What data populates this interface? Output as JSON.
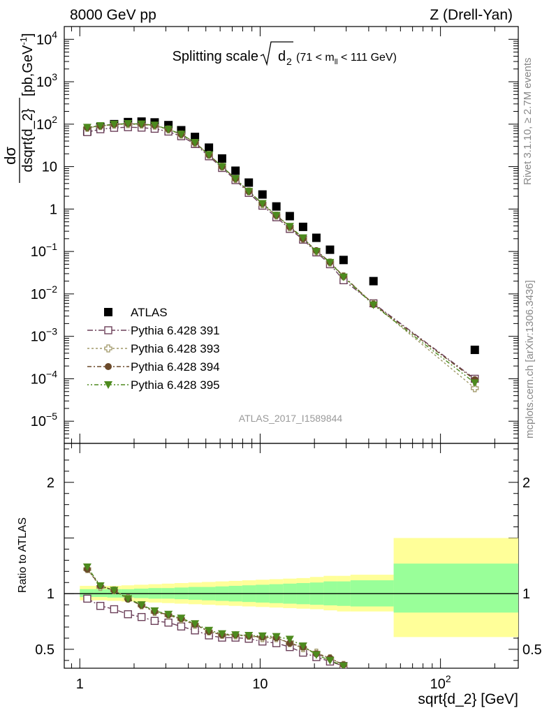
{
  "header": {
    "left": "8000 GeV pp",
    "right": "Z (Drell-Yan)"
  },
  "side_labels": {
    "rivet": "Rivet 3.1.10, ≥ 2.7M events",
    "mcplots": "mcplots.cern.ch [arXiv:1306.3436]"
  },
  "chart_data": [
    {
      "type": "scatter",
      "title": "Splitting scale",
      "title_symbol": "d",
      "title_subscript": "2",
      "title_range": "(71 < m",
      "title_range_sub": "ll",
      "title_range_end": " < 111 GeV)",
      "analysis_label": "ATLAS_2017_I1589844",
      "xlabel": "sqrt{d_2} [GeV]",
      "ylabel_top": "dσ",
      "ylabel_bottom": "dsqrt{d_2}",
      "ylabel_unit": "[pb,GeV",
      "ylabel_unit_sup": "-1",
      "ylabel_unit_end": "]",
      "xscale": "log",
      "yscale": "log",
      "xlim": [
        0.82,
        270
      ],
      "ylim": [
        3e-06,
        20000
      ],
      "legend_position": "bottom-left",
      "x_ticks": [
        {
          "v": 1,
          "label": "1"
        },
        {
          "v": 10,
          "label": "10"
        },
        {
          "v": 100,
          "label": "10",
          "sup": "2"
        }
      ],
      "y_ticks": [
        {
          "v": 1e-05,
          "label": "10",
          "sup": "−5"
        },
        {
          "v": 0.0001,
          "label": "10",
          "sup": "−4"
        },
        {
          "v": 0.001,
          "label": "10",
          "sup": "−3"
        },
        {
          "v": 0.01,
          "label": "10",
          "sup": "−2"
        },
        {
          "v": 0.1,
          "label": "10",
          "sup": "−1"
        },
        {
          "v": 1,
          "label": "1",
          "sup": ""
        },
        {
          "v": 10,
          "label": "10",
          "sup": ""
        },
        {
          "v": 100,
          "label": "10",
          "sup": "2"
        },
        {
          "v": 1000,
          "label": "10",
          "sup": "3"
        },
        {
          "v": 10000,
          "label": "10",
          "sup": "4"
        }
      ],
      "x": [
        1.1,
        1.3,
        1.55,
        1.85,
        2.2,
        2.6,
        3.1,
        3.65,
        4.35,
        5.2,
        6.15,
        7.3,
        8.65,
        10.3,
        12.3,
        14.6,
        17.3,
        20.5,
        24.4,
        29.0,
        42.5,
        155.0
      ],
      "series": [
        {
          "name": "ATLAS",
          "marker": "square-filled",
          "color": "#000000",
          "values": [
            68,
            85,
            100,
            112,
            115,
            110,
            95,
            72,
            50,
            28,
            15.5,
            8,
            4.2,
            2.2,
            1.15,
            0.68,
            0.38,
            0.21,
            0.11,
            0.063,
            0.02,
            0.00048
          ]
        },
        {
          "name": "Pythia 6.428 391",
          "marker": "square-open",
          "color": "#6b3f59",
          "values": [
            65,
            76,
            82,
            85,
            83,
            78,
            67,
            52,
            34,
            17.5,
            9.3,
            4.8,
            2.4,
            1.2,
            0.64,
            0.34,
            0.19,
            0.095,
            0.05,
            0.021,
            0.006,
            0.0001
          ]
        },
        {
          "name": "Pythia 6.428 393",
          "marker": "cross-open",
          "color": "#a09868",
          "values": [
            82,
            90,
            97,
            100,
            98,
            92,
            75,
            57,
            36,
            19,
            10,
            5.1,
            2.6,
            1.3,
            0.7,
            0.37,
            0.2,
            0.1,
            0.055,
            0.026,
            0.0058,
            6e-05
          ]
        },
        {
          "name": "Pythia 6.428 394",
          "marker": "circle-filled",
          "color": "#6b4a2a",
          "values": [
            83,
            91,
            99,
            103,
            100,
            94,
            76,
            58,
            37,
            19,
            10,
            5.2,
            2.6,
            1.35,
            0.71,
            0.38,
            0.2,
            0.105,
            0.056,
            0.026,
            0.0057,
            9.5e-05
          ]
        },
        {
          "name": "Pythia 6.428 395",
          "marker": "triangle-filled",
          "color": "#4d8a1e",
          "values": [
            84,
            92,
            100,
            103,
            101,
            95,
            76,
            58,
            37,
            19,
            10,
            5.2,
            2.6,
            1.35,
            0.71,
            0.39,
            0.21,
            0.1,
            0.055,
            0.025,
            0.0055,
            8e-05
          ]
        }
      ]
    },
    {
      "type": "scatter",
      "title": "",
      "ylabel": "Ratio to ATLAS",
      "xscale": "log",
      "yscale": "linear",
      "ylim": [
        0.33,
        2.35
      ],
      "y_ticks": [
        {
          "v": 0.5,
          "label": "0.5"
        },
        {
          "v": 1,
          "label": "1"
        },
        {
          "v": 2,
          "label": "2"
        }
      ],
      "x": [
        1.1,
        1.3,
        1.55,
        1.85,
        2.2,
        2.6,
        3.1,
        3.65,
        4.35,
        5.2,
        6.15,
        7.3,
        8.65,
        10.3,
        12.3,
        14.6,
        17.3,
        20.5,
        24.4,
        29.0
      ],
      "bands": {
        "edges": [
          1.0,
          1.2,
          1.42,
          1.7,
          2.0,
          2.4,
          2.85,
          3.35,
          4.0,
          4.75,
          5.65,
          6.7,
          7.95,
          9.45,
          11.25,
          13.4,
          15.9,
          18.9,
          22.5,
          26.7,
          31.7,
          55.0,
          270.0
        ],
        "stat_syst_hi": [
          1.07,
          1.07,
          1.07,
          1.075,
          1.08,
          1.085,
          1.09,
          1.095,
          1.1,
          1.105,
          1.11,
          1.115,
          1.12,
          1.125,
          1.13,
          1.135,
          1.14,
          1.15,
          1.16,
          1.16,
          1.17,
          1.5
        ],
        "stat_syst_lo": [
          0.94,
          0.94,
          0.935,
          0.93,
          0.925,
          0.92,
          0.915,
          0.91,
          0.905,
          0.9,
          0.895,
          0.89,
          0.885,
          0.88,
          0.875,
          0.87,
          0.865,
          0.86,
          0.85,
          0.84,
          0.84,
          0.61
        ],
        "stat_hi": [
          1.04,
          1.04,
          1.04,
          1.04,
          1.045,
          1.05,
          1.05,
          1.055,
          1.06,
          1.06,
          1.065,
          1.07,
          1.075,
          1.08,
          1.085,
          1.09,
          1.095,
          1.1,
          1.11,
          1.11,
          1.12,
          1.27
        ],
        "stat_lo": [
          0.97,
          0.97,
          0.965,
          0.965,
          0.96,
          0.955,
          0.955,
          0.95,
          0.945,
          0.94,
          0.935,
          0.93,
          0.925,
          0.92,
          0.915,
          0.91,
          0.905,
          0.9,
          0.895,
          0.89,
          0.885,
          0.83
        ],
        "stat_color": "#99ff99",
        "syst_color": "#ffff99"
      },
      "series": [
        {
          "name": "Pythia 6.428 391",
          "marker": "square-open",
          "color": "#6b3f59",
          "values": [
            0.955,
            0.89,
            0.86,
            0.815,
            0.79,
            0.755,
            0.74,
            0.705,
            0.67,
            0.625,
            0.605,
            0.605,
            0.595,
            0.57,
            0.555,
            0.52,
            0.47,
            0.43,
            0.39,
            0.35
          ]
        },
        {
          "name": "Pythia 6.428 393",
          "marker": "cross-open",
          "color": "#a09868",
          "values": [
            1.22,
            1.06,
            1.03,
            0.96,
            0.895,
            0.835,
            0.805,
            0.77,
            0.72,
            0.66,
            0.63,
            0.625,
            0.62,
            0.6,
            0.6,
            0.555,
            0.51,
            0.47,
            0.42,
            0.36
          ]
        },
        {
          "name": "Pythia 6.428 394",
          "marker": "circle-filled",
          "color": "#6b4a2a",
          "values": [
            1.22,
            1.07,
            1.03,
            0.95,
            0.895,
            0.84,
            0.81,
            0.775,
            0.725,
            0.66,
            0.63,
            0.63,
            0.62,
            0.61,
            0.605,
            0.555,
            0.52,
            0.46,
            0.42,
            0.36
          ]
        },
        {
          "name": "Pythia 6.428 395",
          "marker": "triangle-filled",
          "color": "#4d8a1e",
          "values": [
            1.24,
            1.07,
            1.03,
            0.955,
            0.9,
            0.845,
            0.815,
            0.78,
            0.73,
            0.67,
            0.64,
            0.63,
            0.625,
            0.62,
            0.615,
            0.59,
            0.53,
            0.45,
            0.4,
            0.35
          ]
        }
      ]
    }
  ]
}
